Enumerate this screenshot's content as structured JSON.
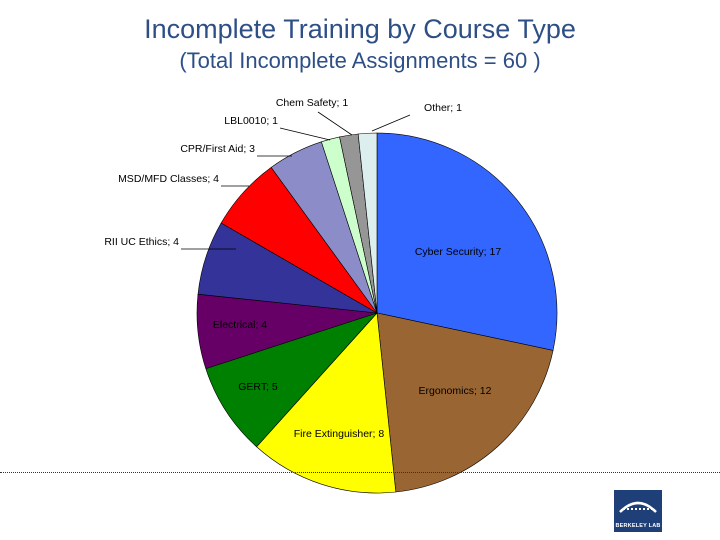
{
  "chart_data": {
    "type": "pie",
    "title": "Incomplete Training by Course Type",
    "subtitle": "(Total Incomplete Assignments = 60 )",
    "slices": [
      {
        "label": "Cyber Security; 17",
        "value": 17,
        "color": "#3366ff"
      },
      {
        "label": "Ergonomics; 12",
        "value": 12,
        "color": "#996633"
      },
      {
        "label": "Fire Extinguisher; 8",
        "value": 8,
        "color": "#ffff00"
      },
      {
        "label": "GERT; 5",
        "value": 5,
        "color": "#008000"
      },
      {
        "label": "Electrical; 4",
        "value": 4,
        "color": "#660066"
      },
      {
        "label": "RII UC Ethics; 4",
        "value": 4,
        "color": "#333399"
      },
      {
        "label": "MSD/MFD Classes; 4",
        "value": 4,
        "color": "#ff0000"
      },
      {
        "label": "CPR/First Aid; 3",
        "value": 3,
        "color": "#8c8cc8"
      },
      {
        "label": "LBL0010; 1",
        "value": 1,
        "color": "#ccffcc"
      },
      {
        "label": "Chem Safety; 1",
        "value": 1,
        "color": "#969696"
      },
      {
        "label": "Other; 1",
        "value": 1,
        "color": "#ddeeee"
      }
    ]
  },
  "logo": {
    "text": "BERKELEY LAB"
  }
}
